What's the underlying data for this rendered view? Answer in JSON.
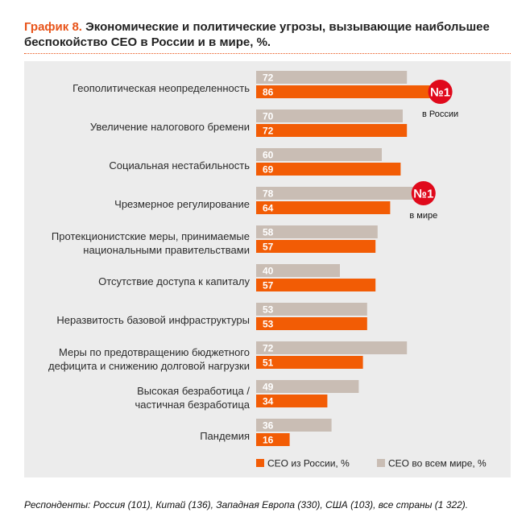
{
  "header": {
    "prefix": "График 8.",
    "title_line1": "Экономические и политические угрозы, вызывающие наибольшее",
    "title_line2": "беспокойство CEO в России и в мире, %."
  },
  "colors": {
    "russia": "#f25c05",
    "world": "#c9bdb4",
    "accent": "#e8541a",
    "badge": "#e0091b"
  },
  "chart_data": {
    "type": "bar",
    "orientation": "horizontal",
    "categories": [
      [
        "Геополитическая неопределенность"
      ],
      [
        "Увеличение налогового бремени"
      ],
      [
        "Социальная нестабильность"
      ],
      [
        "Чрезмерное регулирование"
      ],
      [
        "Протекционистские меры, принимаемые",
        "национальными правительствами"
      ],
      [
        "Отсутствие доступа к капиталу"
      ],
      [
        "Неразвитость базовой инфраструктуры"
      ],
      [
        "Меры по предотвращению бюджетного",
        "дефицита и снижению долговой нагрузки"
      ],
      [
        "Высокая безработица /",
        "частичная безработица"
      ],
      [
        "Пандемия"
      ]
    ],
    "series": [
      {
        "name": "CEO во всем мире, %",
        "values": [
          72,
          70,
          60,
          78,
          58,
          40,
          53,
          72,
          49,
          36
        ]
      },
      {
        "name": "CEO из России, %",
        "values": [
          86,
          72,
          69,
          64,
          57,
          57,
          53,
          51,
          34,
          16
        ]
      }
    ],
    "xlim": [
      0,
      100
    ],
    "grid": false,
    "legend_position": "bottom-right",
    "annotations": [
      {
        "badge": "№1",
        "label": "в России",
        "category_index": 0,
        "series": "CEO из России, %"
      },
      {
        "badge": "№1",
        "label": "в мире",
        "category_index": 3,
        "series": "CEO во всем мире, %"
      }
    ]
  },
  "footnote": "Респонденты: Россия (101), Китай (136), Западная Европа (330), США (103), все страны (1 322)."
}
